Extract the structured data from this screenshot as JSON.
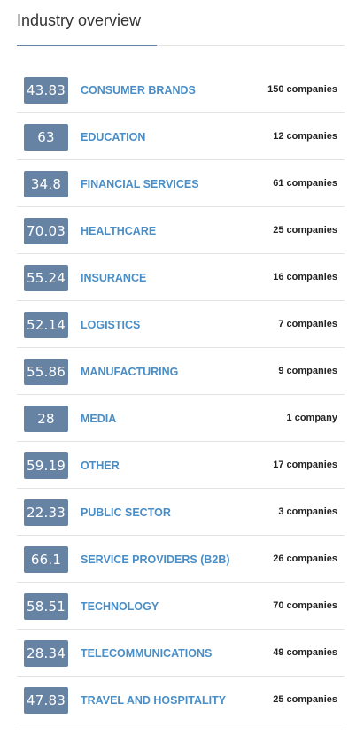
{
  "widget": {
    "title": "Industry overview"
  },
  "industries": [
    {
      "score": "43.83",
      "name": "CONSUMER BRANDS",
      "count": "150 companies"
    },
    {
      "score": "63",
      "name": "EDUCATION",
      "count": "12 companies"
    },
    {
      "score": "34.8",
      "name": "FINANCIAL SERVICES",
      "count": "61 companies"
    },
    {
      "score": "70.03",
      "name": "HEALTHCARE",
      "count": "25 companies"
    },
    {
      "score": "55.24",
      "name": "INSURANCE",
      "count": "16 companies"
    },
    {
      "score": "52.14",
      "name": "LOGISTICS",
      "count": "7 companies"
    },
    {
      "score": "55.86",
      "name": "MANUFACTURING",
      "count": "9 companies"
    },
    {
      "score": "28",
      "name": "MEDIA",
      "count": "1 company"
    },
    {
      "score": "59.19",
      "name": "OTHER",
      "count": "17 companies"
    },
    {
      "score": "22.33",
      "name": "PUBLIC SECTOR",
      "count": "3 companies"
    },
    {
      "score": "66.1",
      "name": "SERVICE PROVIDERS (B2B)",
      "count": "26 companies"
    },
    {
      "score": "58.51",
      "name": "TECHNOLOGY",
      "count": "70 companies"
    },
    {
      "score": "28.34",
      "name": "TELECOMMUNICATIONS",
      "count": "49 companies"
    },
    {
      "score": "47.83",
      "name": "TRAVEL AND HOSPITALITY",
      "count": "25 companies"
    }
  ],
  "colors": {
    "badge": "#6783a3",
    "link": "#4a8ec7",
    "divider": "#e3e3e3",
    "title_underline": "#6783a3"
  }
}
